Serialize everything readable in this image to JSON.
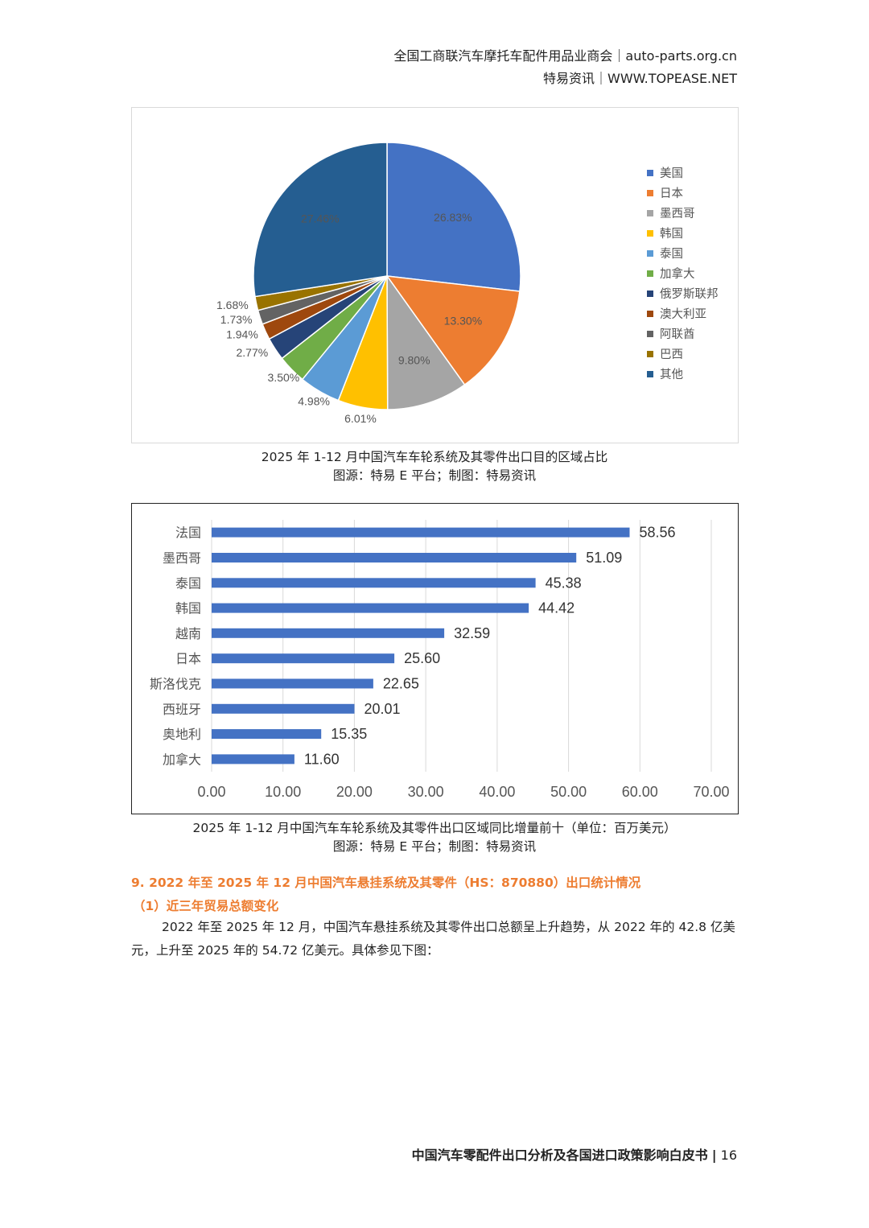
{
  "header": {
    "line1": "全国工商联汽车摩托车配件用品业商会｜auto-parts.org.cn",
    "line2": "特易资讯｜WWW.TOPEASE.NET"
  },
  "chart_data": [
    {
      "type": "pie",
      "title": "2025 年 1-12 月中国汽车车轮系统及其零件出口目的区域占比",
      "categories": [
        "美国",
        "日本",
        "墨西哥",
        "韩国",
        "泰国",
        "加拿大",
        "俄罗斯联邦",
        "澳大利亚",
        "阿联酋",
        "巴西",
        "其他"
      ],
      "values": [
        26.83,
        13.3,
        9.8,
        6.01,
        4.98,
        3.5,
        2.77,
        1.94,
        1.73,
        1.68,
        27.46
      ],
      "labels": [
        "26.83%",
        "13.30%",
        "9.80%",
        "6.01%",
        "4.98%",
        "3.50%",
        "2.77%",
        "1.94%",
        "1.73%",
        "1.68%",
        "27.46%"
      ],
      "colors": [
        "#4472c4",
        "#ed7d31",
        "#a5a5a5",
        "#ffc000",
        "#5b9bd5",
        "#70ad47",
        "#264478",
        "#9e480e",
        "#636363",
        "#997300",
        "#255e91"
      ],
      "legend": "right"
    },
    {
      "type": "bar",
      "orientation": "horizontal",
      "title": "2025 年 1-12 月中国汽车车轮系统及其零件出口区域同比增量前十（单位：百万美元）",
      "categories": [
        "法国",
        "墨西哥",
        "泰国",
        "韩国",
        "越南",
        "日本",
        "斯洛伐克",
        "西班牙",
        "奥地利",
        "加拿大"
      ],
      "values": [
        58.56,
        51.09,
        45.38,
        44.42,
        32.59,
        25.6,
        22.65,
        20.01,
        15.35,
        11.6
      ],
      "value_labels": [
        "58.56",
        "51.09",
        "45.38",
        "44.42",
        "32.59",
        "25.60",
        "22.65",
        "20.01",
        "15.35",
        "11.60"
      ],
      "xlim": [
        0,
        70
      ],
      "xticks": [
        "0.00",
        "10.00",
        "20.00",
        "30.00",
        "40.00",
        "50.00",
        "60.00",
        "70.00"
      ],
      "grid": true,
      "color": "#4472c4"
    }
  ],
  "captions": {
    "pie_title": "2025 年 1-12 月中国汽车车轮系统及其零件出口目的区域占比",
    "pie_source": "图源：特易 E 平台；制图：特易资讯",
    "bar_title": "2025 年 1-12 月中国汽车车轮系统及其零件出口区域同比增量前十（单位：百万美元）",
    "bar_source": "图源：特易 E 平台；制图：特易资讯"
  },
  "section": {
    "heading": "9. 2022 年至 2025 年 12 月中国汽车悬挂系统及其零件（HS：870880）出口统计情况",
    "subheading": "（1）近三年贸易总额变化",
    "paragraph": "2022 年至 2025 年 12 月，中国汽车悬挂系统及其零件出口总额呈上升趋势，从 2022 年的 42.8 亿美元，上升至 2025 年的 54.72 亿美元。具体参见下图："
  },
  "footer": {
    "title": "中国汽车零配件出口分析及各国进口政策影响白皮书",
    "separator": "|",
    "page": "16"
  }
}
